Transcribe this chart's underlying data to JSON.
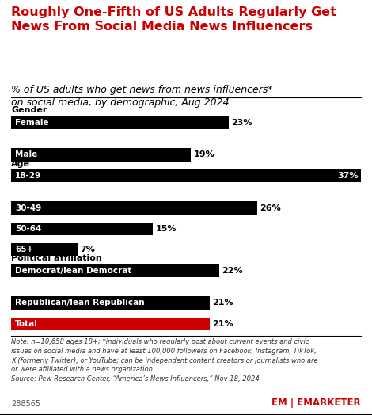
{
  "title": "Roughly One-Fifth of US Adults Regularly Get\nNews From Social Media News Influencers",
  "subtitle": "% of US adults who get news from news influencers*\non social media, by demographic, Aug 2024",
  "categories": [
    "Female",
    "Male",
    "18-29",
    "30-49",
    "50-64",
    "65+",
    "Democrat/lean Democrat",
    "Republican/lean Republican",
    "Total"
  ],
  "values": [
    23,
    19,
    37,
    26,
    15,
    7,
    22,
    21,
    21
  ],
  "bar_colors": [
    "#000000",
    "#000000",
    "#000000",
    "#000000",
    "#000000",
    "#000000",
    "#000000",
    "#000000",
    "#cc0000"
  ],
  "section_labels": [
    "Gender",
    "Age",
    "Political affiliation"
  ],
  "section_before": [
    0,
    2,
    6
  ],
  "note_line1": "Note: n=10,658 ages 18+; *individuals who regularly post about current events and civic",
  "note_line2": "issues on social media and have at least 100,000 followers on Facebook, Instagram, TikTok,",
  "note_line3": "X (formerly Twitter), or YouTube; can be independent content creators or journalists who are",
  "note_line4": "or were affiliated with a news organization",
  "note_line5": "Source: Pew Research Center, “America’s News Influencers,” Nov 18, 2024",
  "footnote_id": "288565",
  "max_val": 37,
  "bg_color": "#ffffff",
  "bar_text_color": "#ffffff",
  "value_color": "#000000",
  "title_color": "#cc0000",
  "subtitle_color": "#000000",
  "section_label_color": "#000000"
}
